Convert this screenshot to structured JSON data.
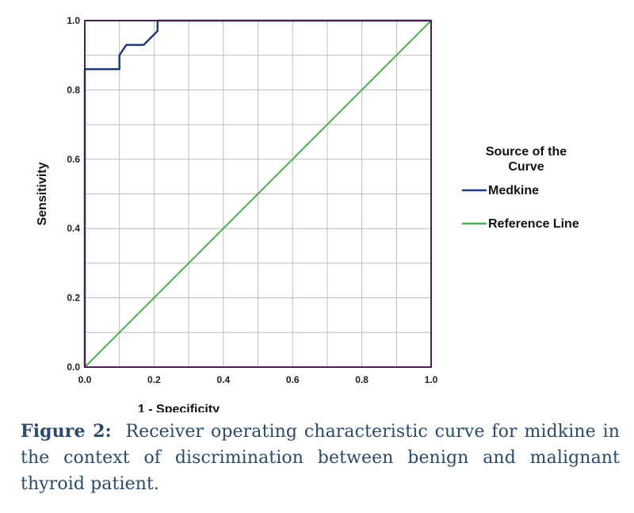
{
  "chart_data": {
    "type": "line",
    "xlabel": "1 - Specificity",
    "ylabel": "Sensitivity",
    "xlim": [
      0.0,
      1.0
    ],
    "ylim": [
      0.0,
      1.0
    ],
    "x_ticks": [
      "0.0",
      "0.2",
      "0.4",
      "0.6",
      "0.8",
      "1.0"
    ],
    "y_ticks": [
      "0.0",
      "0.2",
      "0.4",
      "0.6",
      "0.8",
      "1.0"
    ],
    "grid": true,
    "legend_title": "Source of the Curve",
    "legend_position": "right",
    "series": [
      {
        "name": "Medkine",
        "color": "#1f3b7a",
        "points": [
          [
            0.0,
            0.0
          ],
          [
            0.0,
            0.86
          ],
          [
            0.1,
            0.86
          ],
          [
            0.1,
            0.9
          ],
          [
            0.12,
            0.93
          ],
          [
            0.17,
            0.93
          ],
          [
            0.2,
            0.96
          ],
          [
            0.21,
            0.97
          ],
          [
            0.21,
            1.0
          ],
          [
            1.0,
            1.0
          ]
        ]
      },
      {
        "name": "Reference Line",
        "color": "#4caf50",
        "points": [
          [
            0.0,
            0.0
          ],
          [
            1.0,
            1.0
          ]
        ]
      }
    ]
  },
  "caption": {
    "label": "Figure 2:",
    "text": "Receiver operating characteristic curve for midkine in the context of discrimination between benign and  malignant thyroid patient."
  },
  "colors": {
    "frame": "#4a2050",
    "grid": "#bdbdbd"
  }
}
